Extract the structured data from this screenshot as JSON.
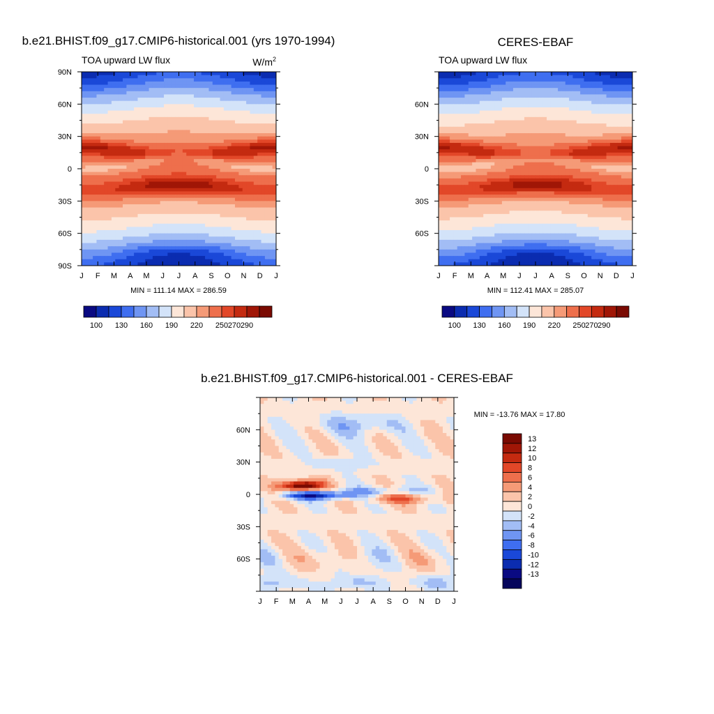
{
  "panels": [
    {
      "title": "b.e21.BHIST.f09_g17.CMIP6-historical.001 (yrs 1970-1994)",
      "left_label": "TOA upward LW flux",
      "units_base": "W/m",
      "units_exp": "2",
      "stats": "MIN = 111.14 MAX = 286.59"
    },
    {
      "title": "CERES-EBAF",
      "left_label": "TOA upward LW flux",
      "units_base": "",
      "units_exp": "",
      "stats": "MIN = 112.41 MAX = 285.07"
    },
    {
      "title": "b.e21.BHIST.f09_g17.CMIP6-historical.001 - CERES-EBAF",
      "stats": "MIN = -13.76 MAX =  17.80"
    }
  ],
  "chart_data": [
    {
      "type": "heatmap",
      "title": "b.e21.BHIST.f09_g17.CMIP6-historical.001 (yrs 1970-1994)",
      "x_ticks": [
        "J",
        "F",
        "M",
        "A",
        "M",
        "J",
        "J",
        "A",
        "S",
        "O",
        "N",
        "D",
        "J"
      ],
      "y_ticks": [
        "90N",
        "60N",
        "30N",
        "0",
        "30S",
        "60S",
        "90S"
      ],
      "ylim": [
        -90,
        90
      ],
      "min": 111.14,
      "max": 286.59,
      "colorbar_labels": [
        "100",
        "130",
        "160",
        "190",
        "220",
        "250",
        "270",
        "290"
      ],
      "colorbar_colors": [
        "#0a0a82",
        "#0b2cb0",
        "#1a48d8",
        "#3f6ef0",
        "#6f95f3",
        "#a2bdf5",
        "#d3e3f9",
        "#fde6d8",
        "#fbc4aa",
        "#f59a77",
        "#ee6f4c",
        "#e24728",
        "#c42a10",
        "#a01606",
        "#7a0a02"
      ],
      "description_values": {
        "tropical_max_nh_early_year": 285,
        "tropical_max_sh_midyear": 286,
        "polar_min_south_midyear": 111
      }
    },
    {
      "type": "heatmap",
      "title": "CERES-EBAF",
      "x_ticks": [
        "J",
        "F",
        "M",
        "A",
        "M",
        "J",
        "J",
        "A",
        "S",
        "O",
        "N",
        "D",
        "J"
      ],
      "y_ticks": [
        "60N",
        "30N",
        "0",
        "30S",
        "60S"
      ],
      "ylim": [
        -90,
        90
      ],
      "min": 112.41,
      "max": 285.07,
      "colorbar_labels": [
        "100",
        "130",
        "160",
        "190",
        "220",
        "250",
        "270",
        "290"
      ],
      "colorbar_colors": [
        "#0a0a82",
        "#0b2cb0",
        "#1a48d8",
        "#3f6ef0",
        "#6f95f3",
        "#a2bdf5",
        "#d3e3f9",
        "#fde6d8",
        "#fbc4aa",
        "#f59a77",
        "#ee6f4c",
        "#e24728",
        "#c42a10",
        "#a01606",
        "#7a0a02"
      ]
    },
    {
      "type": "heatmap",
      "title": "b.e21.BHIST.f09_g17.CMIP6-historical.001 - CERES-EBAF",
      "x_ticks": [
        "J",
        "F",
        "M",
        "A",
        "M",
        "J",
        "J",
        "A",
        "S",
        "O",
        "N",
        "D",
        "J"
      ],
      "y_ticks": [
        "60N",
        "30N",
        "0",
        "30S",
        "60S"
      ],
      "ylim": [
        -90,
        90
      ],
      "min": -13.76,
      "max": 17.8,
      "colorbar_labels": [
        "13",
        "12",
        "10",
        "8",
        "6",
        "4",
        "2",
        "0",
        "-2",
        "-4",
        "-6",
        "-8",
        "-10",
        "-12",
        "-13"
      ],
      "colorbar_colors": [
        "#7a0a02",
        "#a01606",
        "#c42a10",
        "#e24728",
        "#ee6f4c",
        "#f59a77",
        "#fbc4aa",
        "#fde6d8",
        "#d3e3f9",
        "#a2bdf5",
        "#6f95f3",
        "#3f6ef0",
        "#1a48d8",
        "#0b2cb0",
        "#0a0a82",
        "#06065c"
      ]
    }
  ]
}
